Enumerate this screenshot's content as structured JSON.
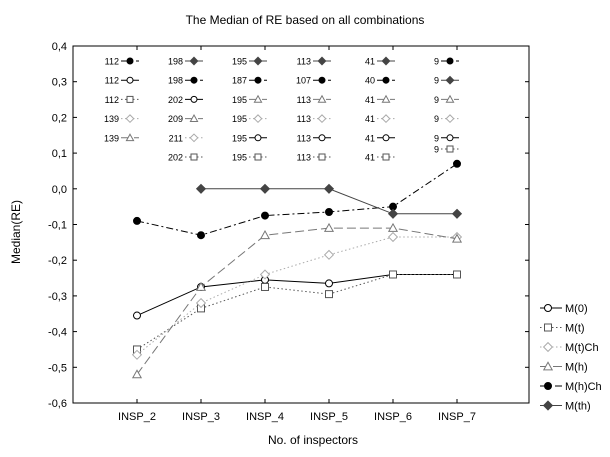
{
  "chart_data": {
    "type": "line",
    "title": "The Median of RE based on all combinations",
    "xlabel": "No. of inspectors",
    "ylabel": "Median(RE)",
    "categories": [
      "INSP_2",
      "INSP_3",
      "INSP_4",
      "INSP_5",
      "INSP_6",
      "INSP_7"
    ],
    "ylim": [
      -0.6,
      0.4
    ],
    "yticks": [
      "-0,6",
      "-0,5",
      "-0,4",
      "-0,3",
      "-0,2",
      "-0,1",
      "0,0",
      "0,1",
      "0,2",
      "0,3",
      "0,4"
    ],
    "grid": false,
    "legend_position": "right",
    "series": [
      {
        "name": "M(0)",
        "marker": "circle-open",
        "dash": "solid",
        "color": "#000000",
        "values": [
          -0.355,
          -0.275,
          -0.255,
          -0.265,
          -0.24,
          -0.24
        ]
      },
      {
        "name": "M(t)",
        "marker": "square-open",
        "dash": "dotted",
        "color": "#555555",
        "values": [
          -0.45,
          -0.335,
          -0.275,
          -0.295,
          -0.24,
          -0.24
        ]
      },
      {
        "name": "M(t)Ch",
        "marker": "diamond-open",
        "dash": "dotted",
        "color": "#aaaaaa",
        "values": [
          -0.465,
          -0.32,
          -0.24,
          -0.185,
          -0.135,
          -0.135
        ]
      },
      {
        "name": "M(h)",
        "marker": "triangle-open",
        "dash": "longdash",
        "color": "#777777",
        "values": [
          -0.52,
          -0.275,
          -0.13,
          -0.11,
          -0.11,
          -0.14
        ]
      },
      {
        "name": "M(h)Ch",
        "marker": "circle-filled",
        "dash": "dashdot",
        "color": "#000000",
        "values": [
          -0.09,
          -0.13,
          -0.075,
          -0.065,
          -0.05,
          0.07
        ]
      },
      {
        "name": "M(th)",
        "marker": "diamond-filled",
        "dash": "solid",
        "color": "#444444",
        "values": [
          null,
          0.0,
          0.0,
          0.0,
          -0.07,
          -0.07
        ]
      }
    ],
    "annotations": [
      {
        "column": "INSP_2",
        "rows": [
          {
            "n": "112",
            "marker": "circle-filled",
            "dash": "dashdot"
          },
          {
            "n": "112",
            "marker": "circle-open",
            "dash": "solid"
          },
          {
            "n": "112",
            "marker": "square-open",
            "dash": "dotted"
          },
          {
            "n": "139",
            "marker": "diamond-open",
            "dash": "dotted"
          },
          {
            "n": "139",
            "marker": "triangle-open",
            "dash": "longdash"
          }
        ]
      },
      {
        "column": "INSP_3",
        "rows": [
          {
            "n": "198",
            "marker": "diamond-filled",
            "dash": "solid"
          },
          {
            "n": "198",
            "marker": "circle-filled",
            "dash": "dashdot"
          },
          {
            "n": "202",
            "marker": "circle-open",
            "dash": "solid"
          },
          {
            "n": "209",
            "marker": "triangle-open",
            "dash": "longdash"
          },
          {
            "n": "211",
            "marker": "diamond-open",
            "dash": "dotted"
          },
          {
            "n": "202",
            "marker": "square-open",
            "dash": "dotted"
          }
        ]
      },
      {
        "column": "INSP_4",
        "rows": [
          {
            "n": "195",
            "marker": "diamond-filled",
            "dash": "solid"
          },
          {
            "n": "187",
            "marker": "circle-filled",
            "dash": "dashdot"
          },
          {
            "n": "195",
            "marker": "triangle-open",
            "dash": "longdash"
          },
          {
            "n": "195",
            "marker": "diamond-open",
            "dash": "dotted"
          },
          {
            "n": "195",
            "marker": "circle-open",
            "dash": "solid"
          },
          {
            "n": "195",
            "marker": "square-open",
            "dash": "dotted"
          }
        ]
      },
      {
        "column": "INSP_5",
        "rows": [
          {
            "n": "113",
            "marker": "diamond-filled",
            "dash": "solid"
          },
          {
            "n": "107",
            "marker": "circle-filled",
            "dash": "dashdot"
          },
          {
            "n": "113",
            "marker": "triangle-open",
            "dash": "longdash"
          },
          {
            "n": "113",
            "marker": "diamond-open",
            "dash": "dotted"
          },
          {
            "n": "113",
            "marker": "circle-open",
            "dash": "solid"
          },
          {
            "n": "113",
            "marker": "square-open",
            "dash": "dotted"
          }
        ]
      },
      {
        "column": "INSP_6",
        "rows": [
          {
            "n": "41",
            "marker": "diamond-filled",
            "dash": "solid"
          },
          {
            "n": "40",
            "marker": "circle-filled",
            "dash": "dashdot"
          },
          {
            "n": "41",
            "marker": "triangle-open",
            "dash": "longdash"
          },
          {
            "n": "41",
            "marker": "diamond-open",
            "dash": "dotted"
          },
          {
            "n": "41",
            "marker": "circle-open",
            "dash": "solid"
          },
          {
            "n": "41",
            "marker": "square-open",
            "dash": "dotted"
          }
        ]
      },
      {
        "column": "INSP_7",
        "rows": [
          {
            "n": "9",
            "marker": "circle-filled",
            "dash": "dashdot"
          },
          {
            "n": "9",
            "marker": "diamond-filled",
            "dash": "solid"
          },
          {
            "n": "9",
            "marker": "triangle-open",
            "dash": "longdash"
          },
          {
            "n": "9",
            "marker": "diamond-open",
            "dash": "dotted"
          },
          {
            "n": "9",
            "marker": "circle-open",
            "dash": "solid"
          },
          {
            "n": "9",
            "marker": "square-open",
            "dash": "dotted"
          }
        ]
      }
    ]
  }
}
